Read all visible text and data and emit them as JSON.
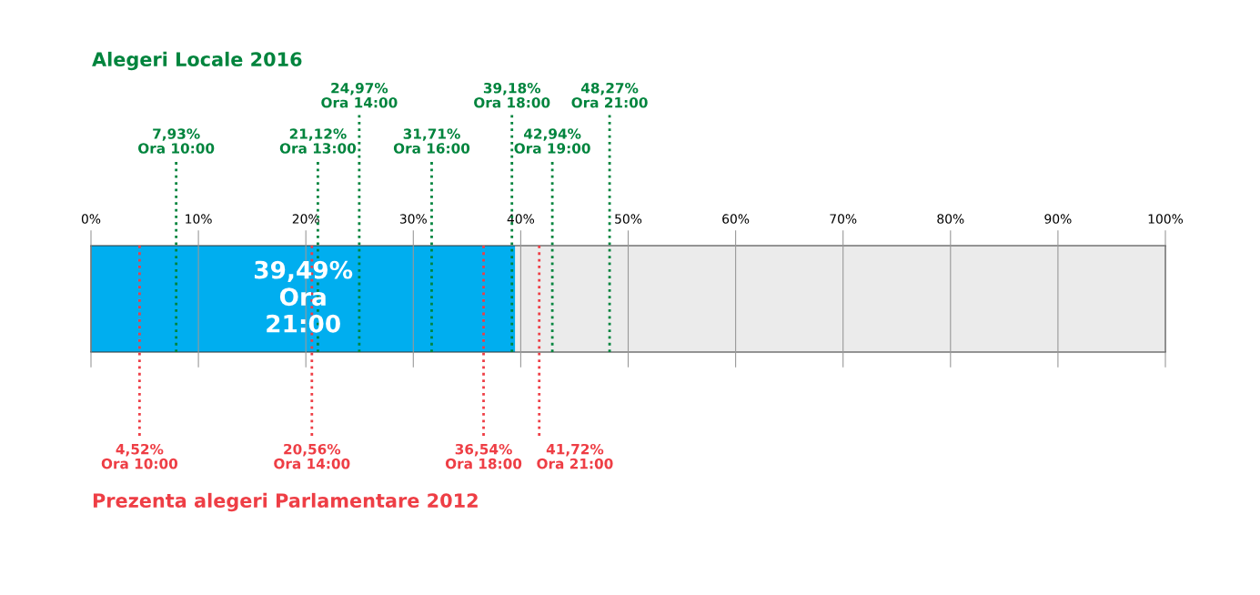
{
  "chart_data": {
    "type": "bar",
    "orientation": "horizontal",
    "title": "Alegeri Locale 2016",
    "annotations": [
      "Prezenta alegeri Parlamentare 2012"
    ],
    "categories": [
      null
    ],
    "stacked": true,
    "series": [
      {
        "color": "#00aeef",
        "values": [
          39.49
        ],
        "value_labels": [
          "39,49%\nOra\n21:00"
        ]
      },
      {
        "color": "#ebebeb",
        "values": [
          60.51
        ]
      }
    ],
    "xlim": [
      0,
      100
    ],
    "xticks": [
      {
        "value": 0,
        "label": "0%"
      },
      {
        "value": 10,
        "label": "10%"
      },
      {
        "value": 20,
        "label": "20%"
      },
      {
        "value": 30,
        "label": "30%"
      },
      {
        "value": 40,
        "label": "40%"
      },
      {
        "value": 50,
        "label": "50%"
      },
      {
        "value": 60,
        "label": "60%"
      },
      {
        "value": 70,
        "label": "70%"
      },
      {
        "value": 80,
        "label": "80%"
      },
      {
        "value": 90,
        "label": "90%"
      },
      {
        "value": 100,
        "label": "100%"
      }
    ],
    "grid": "x",
    "ref_lines": [
      {
        "axis": "x",
        "value": 7.93,
        "label": "7,93%\nOra 10:00",
        "color": "#00843d",
        "line_style": "dotted"
      },
      {
        "axis": "x",
        "value": 21.12,
        "label": "21,12%\nOra 13:00",
        "color": "#00843d",
        "line_style": "dotted"
      },
      {
        "axis": "x",
        "value": 24.97,
        "label": "24,97%\nOra 14:00",
        "color": "#00843d",
        "line_style": "dotted"
      },
      {
        "axis": "x",
        "value": 31.71,
        "label": "31,71%\nOra 16:00",
        "color": "#00843d",
        "line_style": "dotted"
      },
      {
        "axis": "x",
        "value": 39.18,
        "label": "39,18%\nOra 18:00",
        "color": "#00843d",
        "line_style": "dotted"
      },
      {
        "axis": "x",
        "value": 42.94,
        "label": "42,94%\nOra 19:00",
        "color": "#00843d",
        "line_style": "dotted"
      },
      {
        "axis": "x",
        "value": 48.27,
        "label": "48,27%\nOra 21:00",
        "color": "#00843d",
        "line_style": "dotted"
      },
      {
        "axis": "x",
        "value": 4.52,
        "label": "4,52%\nOra 10:00",
        "color": "#ee3e45",
        "line_style": "dotted"
      },
      {
        "axis": "x",
        "value": 20.56,
        "label": "20,56%\nOra 14:00",
        "color": "#ee3e45",
        "line_style": "dotted"
      },
      {
        "axis": "x",
        "value": 36.54,
        "label": "36,54%\nOra 18:00",
        "color": "#ee3e45",
        "line_style": "dotted"
      },
      {
        "axis": "x",
        "value": 41.72,
        "label": "41,72%\nOra 21:00",
        "color": "#ee3e45",
        "line_style": "dotted"
      }
    ]
  }
}
